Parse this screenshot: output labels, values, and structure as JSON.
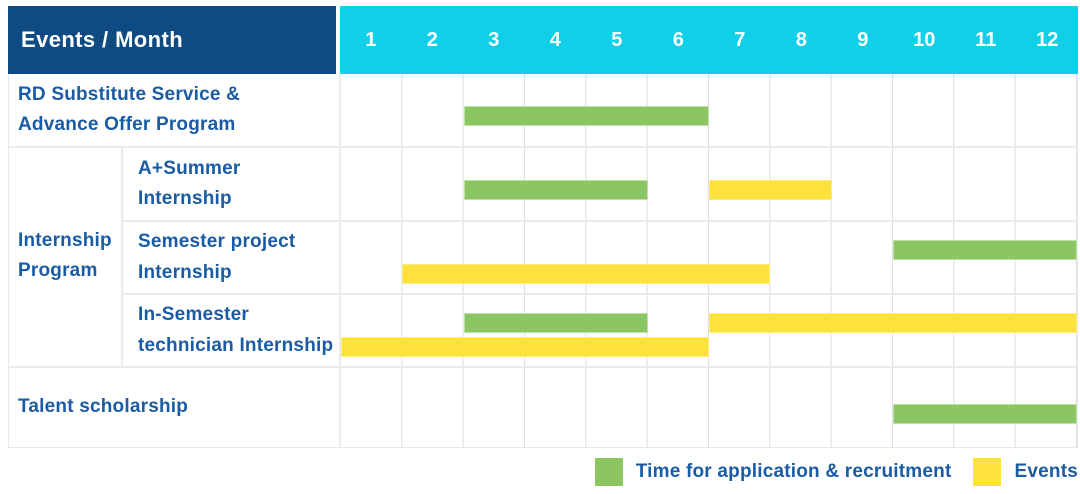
{
  "header": {
    "corner_label": "Events / Month",
    "months": [
      "1",
      "2",
      "3",
      "4",
      "5",
      "6",
      "7",
      "8",
      "9",
      "10",
      "11",
      "12"
    ]
  },
  "group": {
    "id": "internship-program",
    "label": "Internship\nProgram"
  },
  "rows": [
    {
      "id": "rd-substitute-advance-offer",
      "label": "RD Substitute Service &\nAdvance Offer Program",
      "group": false,
      "bars": [
        {
          "color": "green",
          "start": 3,
          "end": 6,
          "lane": "single"
        }
      ]
    },
    {
      "id": "a-plus-summer-internship",
      "label": "A+Summer\nInternship",
      "group": true,
      "bars": [
        {
          "color": "green",
          "start": 3,
          "end": 5,
          "lane": "single"
        },
        {
          "color": "yellow",
          "start": 7,
          "end": 8,
          "lane": "single"
        }
      ]
    },
    {
      "id": "semester-project-internship",
      "label": "Semester project\nInternship",
      "group": true,
      "bars": [
        {
          "color": "green",
          "start": 10,
          "end": 12,
          "lane": "upper"
        },
        {
          "color": "yellow",
          "start": 2,
          "end": 7,
          "lane": "lower"
        }
      ]
    },
    {
      "id": "in-semester-technician-internship",
      "label": "In-Semester\ntechnician Internship",
      "group": true,
      "bars": [
        {
          "color": "green",
          "start": 3,
          "end": 5,
          "lane": "upper"
        },
        {
          "color": "yellow",
          "start": 7,
          "end": 12,
          "lane": "upper"
        },
        {
          "color": "yellow",
          "start": 1,
          "end": 6,
          "lane": "lower"
        }
      ]
    },
    {
      "id": "talent-scholarship",
      "label": "Talent scholarship",
      "group": false,
      "bars": [
        {
          "color": "green",
          "start": 10,
          "end": 12,
          "lane": "single"
        }
      ]
    }
  ],
  "legend": {
    "items": [
      {
        "id": "application",
        "label": "Time for application & recruitment",
        "color": "#8cc663"
      },
      {
        "id": "events",
        "label": "Events",
        "color": "#fde23d"
      }
    ]
  },
  "colors": {
    "header_navy": "#0e4b82",
    "header_cyan": "#0fcfe9",
    "bar_green": "#8cc663",
    "bar_yellow": "#fde23d",
    "label_text": "#1a5ca3",
    "grid_line": "#dadde1"
  },
  "chart_data": {
    "type": "gantt",
    "title": "Events / Month",
    "x_axis": {
      "label": "Month",
      "ticks": [
        1,
        2,
        3,
        4,
        5,
        6,
        7,
        8,
        9,
        10,
        11,
        12
      ],
      "range": [
        1,
        12
      ]
    },
    "legend_position": "bottom-right",
    "grid": true,
    "series_legend": [
      "Time for application & recruitment",
      "Events"
    ],
    "rows": [
      {
        "group": "",
        "label": "RD Substitute Service & Advance Offer Program",
        "bars": [
          {
            "series": "Time for application & recruitment",
            "start_month": 3,
            "end_month": 6
          }
        ]
      },
      {
        "group": "Internship Program",
        "label": "A+Summer Internship",
        "bars": [
          {
            "series": "Time for application & recruitment",
            "start_month": 3,
            "end_month": 5
          },
          {
            "series": "Events",
            "start_month": 7,
            "end_month": 8
          }
        ]
      },
      {
        "group": "Internship Program",
        "label": "Semester project Internship",
        "bars": [
          {
            "series": "Time for application & recruitment",
            "start_month": 10,
            "end_month": 12
          },
          {
            "series": "Events",
            "start_month": 2,
            "end_month": 7
          }
        ]
      },
      {
        "group": "Internship Program",
        "label": "In-Semester technician Internship",
        "bars": [
          {
            "series": "Time for application & recruitment",
            "start_month": 3,
            "end_month": 5
          },
          {
            "series": "Events",
            "start_month": 7,
            "end_month": 12
          },
          {
            "series": "Events",
            "start_month": 1,
            "end_month": 6
          }
        ]
      },
      {
        "group": "",
        "label": "Talent scholarship",
        "bars": [
          {
            "series": "Time for application & recruitment",
            "start_month": 10,
            "end_month": 12
          }
        ]
      }
    ]
  }
}
